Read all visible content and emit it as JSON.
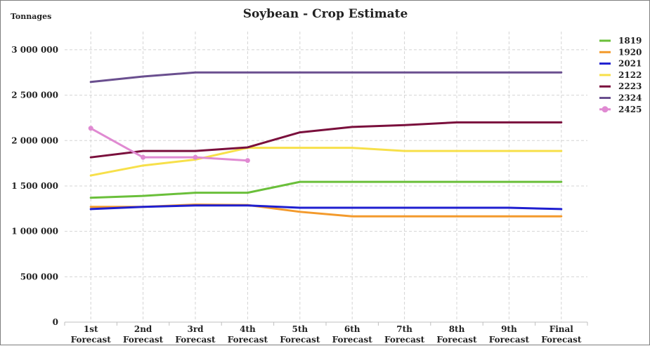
{
  "chart_data": {
    "type": "line",
    "title": "Soybean - Crop Estimate",
    "ylabel": "Tonnages",
    "xlabel": "",
    "ylim": [
      0,
      3200000
    ],
    "yticks": [
      0,
      500000,
      1000000,
      1500000,
      2000000,
      2500000,
      3000000
    ],
    "ytick_labels": [
      "0",
      "500 000",
      "1 000 000",
      "1 500 000",
      "2 000 000",
      "2 500 000",
      "3 000 000"
    ],
    "categories": [
      [
        "1st",
        "Forecast"
      ],
      [
        "2nd",
        "Forecast"
      ],
      [
        "3rd",
        "Forecast"
      ],
      [
        "4th",
        "Forecast"
      ],
      [
        "5th",
        "Forecast"
      ],
      [
        "6th",
        "Forecast"
      ],
      [
        "7th",
        "Forecast"
      ],
      [
        "8th",
        "Forecast"
      ],
      [
        "9th",
        "Forecast"
      ],
      [
        "Final",
        "Forecast"
      ]
    ],
    "grid": true,
    "legend_position": "right",
    "series": [
      {
        "name": "1819",
        "color": "#6abf3a",
        "markers": false,
        "values": [
          1370000,
          1390000,
          1425000,
          1425000,
          1545000,
          1545000,
          1545000,
          1545000,
          1545000,
          1545000
        ]
      },
      {
        "name": "1920",
        "color": "#f39a2c",
        "markers": false,
        "values": [
          1270000,
          1270000,
          1295000,
          1290000,
          1215000,
          1165000,
          1165000,
          1165000,
          1165000,
          1165000
        ]
      },
      {
        "name": "2021",
        "color": "#1f1fd0",
        "markers": false,
        "values": [
          1245000,
          1270000,
          1285000,
          1285000,
          1260000,
          1260000,
          1260000,
          1260000,
          1260000,
          1245000
        ]
      },
      {
        "name": "2122",
        "color": "#f7e04a",
        "markers": false,
        "values": [
          1615000,
          1725000,
          1790000,
          1920000,
          1920000,
          1920000,
          1885000,
          1885000,
          1885000,
          1885000
        ]
      },
      {
        "name": "2223",
        "color": "#7a0f3c",
        "markers": false,
        "values": [
          1815000,
          1885000,
          1885000,
          1925000,
          2090000,
          2150000,
          2170000,
          2200000,
          2200000,
          2200000
        ]
      },
      {
        "name": "2324",
        "color": "#6a4f8f",
        "markers": false,
        "values": [
          2645000,
          2705000,
          2750000,
          2750000,
          2750000,
          2750000,
          2750000,
          2750000,
          2750000,
          2750000
        ]
      },
      {
        "name": "2425",
        "color": "#e08ad2",
        "markers": true,
        "values": [
          2135000,
          1815000,
          1815000,
          1780000,
          null,
          null,
          null,
          null,
          null,
          null
        ]
      }
    ]
  }
}
